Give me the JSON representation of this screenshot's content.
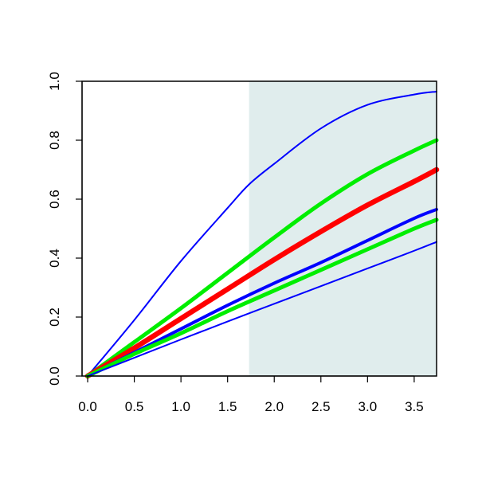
{
  "chart_data": {
    "type": "line",
    "title": "",
    "xlabel": "",
    "ylabel": "",
    "xlim": [
      -0.06,
      3.74
    ],
    "ylim": [
      0.0,
      1.0
    ],
    "x_ticks": [
      "0.0",
      "0.5",
      "1.0",
      "1.5",
      "2.0",
      "2.5",
      "3.0",
      "3.5"
    ],
    "y_ticks": [
      "0.0",
      "0.2",
      "0.4",
      "0.6",
      "0.8",
      "1.0"
    ],
    "x_tick_values": [
      0,
      0.5,
      1.0,
      1.5,
      2.0,
      2.5,
      3.0,
      3.5
    ],
    "y_tick_values": [
      0,
      0.2,
      0.4,
      0.6,
      0.8,
      1.0
    ],
    "grid": false,
    "legend": "none",
    "shaded_region": {
      "x_start": 1.73,
      "x_end": 3.74,
      "color": "#e0eded"
    },
    "series": [
      {
        "color": "#0000ff",
        "weight": "thin",
        "x": [
          0,
          0.5,
          1.0,
          1.5,
          1.73,
          2.0,
          2.5,
          3.0,
          3.5,
          3.74
        ],
        "y": [
          0,
          0.19,
          0.39,
          0.57,
          0.65,
          0.72,
          0.84,
          0.92,
          0.955,
          0.965
        ]
      },
      {
        "color": "#00ee00",
        "weight": "thick",
        "x": [
          0,
          0.5,
          1.0,
          1.5,
          2.0,
          2.5,
          3.0,
          3.5,
          3.74
        ],
        "y": [
          0,
          0.115,
          0.23,
          0.35,
          0.47,
          0.585,
          0.685,
          0.765,
          0.8
        ]
      },
      {
        "color": "#ff0000",
        "weight": "thickest",
        "x": [
          0,
          0.5,
          1.0,
          1.5,
          2.0,
          2.5,
          3.0,
          3.5,
          3.74
        ],
        "y": [
          0,
          0.095,
          0.195,
          0.295,
          0.395,
          0.49,
          0.58,
          0.66,
          0.7
        ]
      },
      {
        "color": "#0000ff",
        "weight": "medium",
        "x": [
          0,
          0.5,
          1.0,
          1.5,
          2.0,
          2.5,
          3.0,
          3.5,
          3.74
        ],
        "y": [
          0,
          0.08,
          0.16,
          0.24,
          0.315,
          0.385,
          0.46,
          0.535,
          0.565
        ]
      },
      {
        "color": "#00ee00",
        "weight": "thick",
        "x": [
          0,
          0.5,
          1.0,
          1.5,
          2.0,
          2.5,
          3.0,
          3.5,
          3.74
        ],
        "y": [
          0,
          0.075,
          0.145,
          0.22,
          0.29,
          0.36,
          0.43,
          0.5,
          0.53
        ]
      },
      {
        "color": "#0000ff",
        "weight": "thin",
        "x": [
          0,
          0.5,
          1.0,
          1.5,
          2.0,
          2.5,
          3.0,
          3.5,
          3.74
        ],
        "y": [
          0,
          0.062,
          0.124,
          0.185,
          0.245,
          0.305,
          0.365,
          0.425,
          0.455
        ]
      }
    ]
  }
}
